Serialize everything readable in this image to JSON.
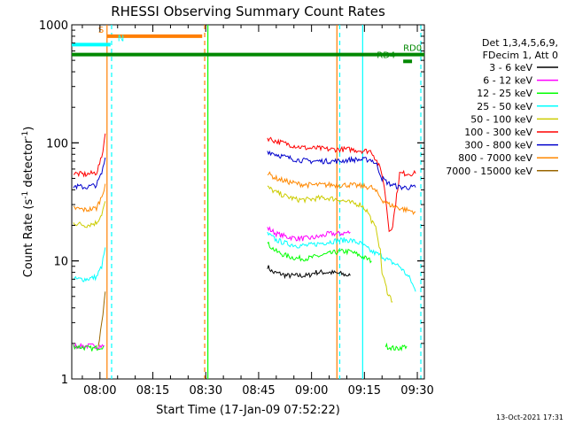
{
  "chart_data": {
    "type": "line",
    "title": "RHESSI Observing Summary Count Rates",
    "xlabel": "Start Time (17-Jan-09 07:52:22)",
    "ylabel_main": "Count Rate (s",
    "ylabel_sup1": "-1",
    "ylabel_mid": " detector",
    "ylabel_sup2": "-1",
    "ylabel_end": ")",
    "x_scale": "time (minutes)",
    "xlim": [
      472,
      572
    ],
    "y_scale": "log",
    "ylim": [
      1,
      1000
    ],
    "x_ticks": [
      {
        "value": 480,
        "label": "08:00"
      },
      {
        "value": 495,
        "label": "08:15"
      },
      {
        "value": 510,
        "label": "08:30"
      },
      {
        "value": 525,
        "label": "08:45"
      },
      {
        "value": 540,
        "label": "09:00"
      },
      {
        "value": 555,
        "label": "09:15"
      },
      {
        "value": 570,
        "label": "09:30"
      }
    ],
    "y_ticks": [
      {
        "value": 1,
        "label": "1"
      },
      {
        "value": 10,
        "label": "10"
      },
      {
        "value": 100,
        "label": "100"
      },
      {
        "value": 1000,
        "label": "1000"
      }
    ],
    "legend": {
      "placement": "right",
      "header": [
        "Det 1,3,4,5,6,9,",
        "FDecim 1, Att 0"
      ]
    },
    "series": [
      {
        "name": "3 - 6 keV",
        "color": "#000000",
        "segments": [
          [
            [
              527.5,
              9
            ],
            [
              529,
              8
            ],
            [
              531,
              7.8
            ],
            [
              533,
              7.5
            ],
            [
              535,
              7.5
            ],
            [
              537,
              7.5
            ],
            [
              539,
              7.5
            ],
            [
              541,
              8
            ],
            [
              543,
              8
            ],
            [
              545,
              8
            ],
            [
              548,
              7.8
            ],
            [
              551,
              7.5
            ]
          ]
        ]
      },
      {
        "name": "6 - 12 keV",
        "color": "#ff00ff",
        "segments": [
          [
            [
              472.5,
              1.9
            ],
            [
              480,
              1.9
            ],
            [
              481.3,
              1.9
            ]
          ],
          [
            [
              527.5,
              19
            ],
            [
              530,
              17
            ],
            [
              533,
              16
            ],
            [
              536,
              15.5
            ],
            [
              539,
              15.5
            ],
            [
              542,
              16
            ],
            [
              545,
              17
            ],
            [
              548,
              17
            ],
            [
              551,
              17.5
            ]
          ]
        ]
      },
      {
        "name": "12 - 25 keV",
        "color": "#00ff00",
        "segments": [
          [
            [
              472.5,
              1.9
            ],
            [
              478,
              1.8
            ],
            [
              481,
              1.9
            ]
          ],
          [
            [
              527.5,
              14
            ],
            [
              530,
              12
            ],
            [
              533,
              11
            ],
            [
              536,
              10.5
            ],
            [
              539,
              10.5
            ],
            [
              542,
              11
            ],
            [
              545,
              11.5
            ],
            [
              548,
              12
            ],
            [
              551,
              12
            ],
            [
              554,
              11
            ],
            [
              557,
              10
            ]
          ],
          [
            [
              561,
              1.9
            ],
            [
              564,
              1.8
            ],
            [
              567,
              1.9
            ]
          ]
        ]
      },
      {
        "name": "25 - 50 keV",
        "color": "#00ffff",
        "segments": [
          [
            [
              472.5,
              7
            ],
            [
              476,
              7
            ],
            [
              479,
              7.3
            ],
            [
              480.5,
              9
            ],
            [
              481.5,
              13
            ]
          ],
          [
            [
              527.5,
              17
            ],
            [
              530,
              15
            ],
            [
              533,
              14
            ],
            [
              536,
              13.5
            ],
            [
              539,
              13.5
            ],
            [
              542,
              14
            ],
            [
              545,
              14.5
            ],
            [
              548,
              15
            ],
            [
              551,
              15
            ],
            [
              554,
              14
            ],
            [
              557,
              12
            ],
            [
              560,
              11
            ],
            [
              562,
              10
            ],
            [
              565,
              9
            ],
            [
              568,
              7
            ],
            [
              569.5,
              5.5
            ]
          ]
        ]
      },
      {
        "name": "50 - 100 keV",
        "color": "#cccc00",
        "segments": [
          [
            [
              472.5,
              21
            ],
            [
              476,
              20
            ],
            [
              479,
              21
            ],
            [
              480.5,
              25
            ],
            [
              481.5,
              32
            ]
          ],
          [
            [
              527.5,
              42
            ],
            [
              530,
              38
            ],
            [
              533,
              35
            ],
            [
              536,
              33
            ],
            [
              539,
              33
            ],
            [
              542,
              34
            ],
            [
              545,
              34
            ],
            [
              548,
              33
            ],
            [
              551,
              31
            ],
            [
              554,
              30
            ],
            [
              556,
              26
            ],
            [
              557,
              22
            ],
            [
              558.5,
              18
            ],
            [
              559.5,
              12
            ],
            [
              560,
              8
            ],
            [
              561.5,
              5.5
            ],
            [
              563,
              4.5
            ]
          ]
        ]
      },
      {
        "name": "100 - 300 keV",
        "color": "#ff0000",
        "segments": [
          [
            [
              472.5,
              55
            ],
            [
              476,
              54
            ],
            [
              479,
              56
            ],
            [
              480.5,
              75
            ],
            [
              481.5,
              120
            ]
          ],
          [
            [
              527.5,
              110
            ],
            [
              530,
              103
            ],
            [
              533,
              98
            ],
            [
              536,
              93
            ],
            [
              539,
              90
            ],
            [
              542,
              90
            ],
            [
              545,
              88
            ],
            [
              548,
              88
            ],
            [
              551,
              88
            ],
            [
              554,
              86
            ],
            [
              557,
              85
            ],
            [
              558.5,
              70
            ],
            [
              560,
              55
            ],
            [
              561,
              35
            ],
            [
              562,
              18
            ],
            [
              563,
              20
            ],
            [
              565,
              55
            ],
            [
              567,
              55
            ],
            [
              569.5,
              55
            ]
          ]
        ]
      },
      {
        "name": "300 - 800 keV",
        "color": "#0000cc",
        "segments": [
          [
            [
              472.5,
              43
            ],
            [
              476,
              42
            ],
            [
              479,
              44
            ],
            [
              480.5,
              55
            ],
            [
              481.5,
              75
            ]
          ],
          [
            [
              527.5,
              85
            ],
            [
              530,
              80
            ],
            [
              533,
              75
            ],
            [
              536,
              72
            ],
            [
              539,
              70
            ],
            [
              542,
              70
            ],
            [
              545,
              70
            ],
            [
              548,
              70
            ],
            [
              551,
              72
            ],
            [
              554,
              72
            ],
            [
              557,
              72
            ],
            [
              558.5,
              65
            ],
            [
              560,
              50
            ],
            [
              562,
              45
            ],
            [
              565,
              42
            ],
            [
              567,
              42
            ],
            [
              569.5,
              42
            ]
          ]
        ]
      },
      {
        "name": "800 - 7000 keV",
        "color": "#ff8800",
        "segments": [
          [
            [
              472.5,
              28
            ],
            [
              476,
              27
            ],
            [
              479,
              28
            ],
            [
              480.5,
              35
            ],
            [
              481.5,
              45
            ]
          ],
          [
            [
              527.5,
              55
            ],
            [
              530,
              50
            ],
            [
              533,
              47
            ],
            [
              536,
              45
            ],
            [
              539,
              44
            ],
            [
              542,
              44
            ],
            [
              545,
              44
            ],
            [
              548,
              44
            ],
            [
              551,
              44
            ],
            [
              554,
              43
            ],
            [
              557,
              42
            ],
            [
              558.5,
              38
            ],
            [
              560,
              33
            ],
            [
              562,
              30
            ],
            [
              565,
              28
            ],
            [
              567,
              27
            ],
            [
              569.5,
              26
            ]
          ]
        ]
      },
      {
        "name": "7000 - 15000 keV",
        "color": "#996600",
        "segments": [
          [
            [
              479.5,
              1.8
            ],
            [
              480.5,
              3
            ],
            [
              481.5,
              5.5
            ]
          ]
        ]
      }
    ],
    "annotations": [
      {
        "label": "S",
        "color": "#ff7f00",
        "x_start": 482,
        "x_end": 509,
        "y": 800,
        "label_x": 479.5
      },
      {
        "label": "N",
        "color": "#00ffff",
        "x_start": 472,
        "x_end": 483,
        "y": 680,
        "label_x": 485
      },
      {
        "label": "RD0",
        "color": "#008800",
        "x_start": 472,
        "x_end": 572,
        "y": 560,
        "label_x": 566
      },
      {
        "label": "RD4",
        "color": "#008800",
        "x_start": 566,
        "x_end": 568.5,
        "y": 490,
        "label_x": 558.5
      }
    ],
    "vertical_lines": [
      {
        "x": 482,
        "color": "#ff7f00",
        "dashed": false
      },
      {
        "x": 509.7,
        "color": "#ff7f00",
        "dashed": true
      },
      {
        "x": 547.2,
        "color": "#ff7f00",
        "dashed": false
      },
      {
        "x": 483.3,
        "color": "#00ffff",
        "dashed": true
      },
      {
        "x": 510.6,
        "color": "#00ff00",
        "dashed": false
      },
      {
        "x": 548,
        "color": "#00ffff",
        "dashed": true
      },
      {
        "x": 554.5,
        "color": "#00ffff",
        "dashed": false
      },
      {
        "x": 571,
        "color": "#00ffff",
        "dashed": true
      }
    ]
  },
  "footer": {
    "date_stamp": "13-Oct-2021 17:31"
  }
}
